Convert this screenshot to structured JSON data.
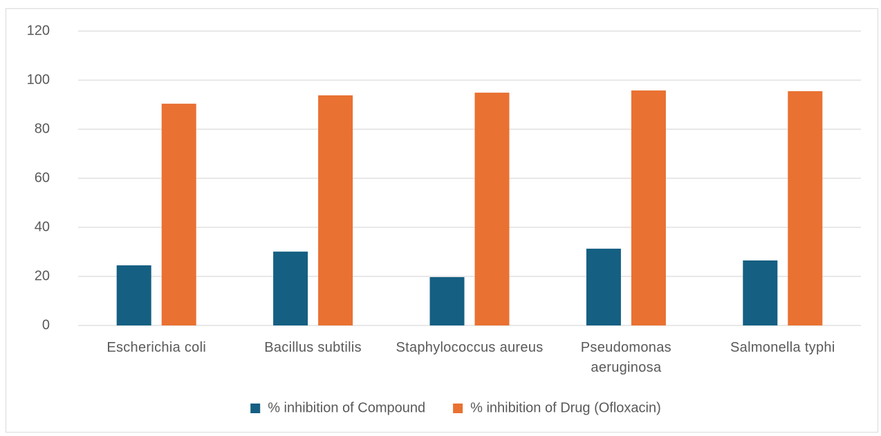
{
  "chart_data": {
    "type": "bar",
    "categories": [
      "Escherichia coli",
      "Bacillus subtilis",
      "Staphylococcus aureus",
      "Pseudomonas aeruginosa",
      "Salmonella typhi"
    ],
    "series": [
      {
        "name": "% inhibition of Compound",
        "color": "#155f82",
        "values": [
          24.5,
          30.1,
          19.7,
          31.3,
          26.5
        ]
      },
      {
        "name": "% inhibition of Drug (Ofloxacin)",
        "color": "#e97132",
        "values": [
          90.4,
          93.8,
          94.9,
          95.8,
          95.5
        ]
      }
    ],
    "ylim": [
      0,
      120
    ],
    "yticks": [
      0,
      20,
      40,
      60,
      80,
      100,
      120
    ],
    "grid": true,
    "legend": "bottom"
  }
}
